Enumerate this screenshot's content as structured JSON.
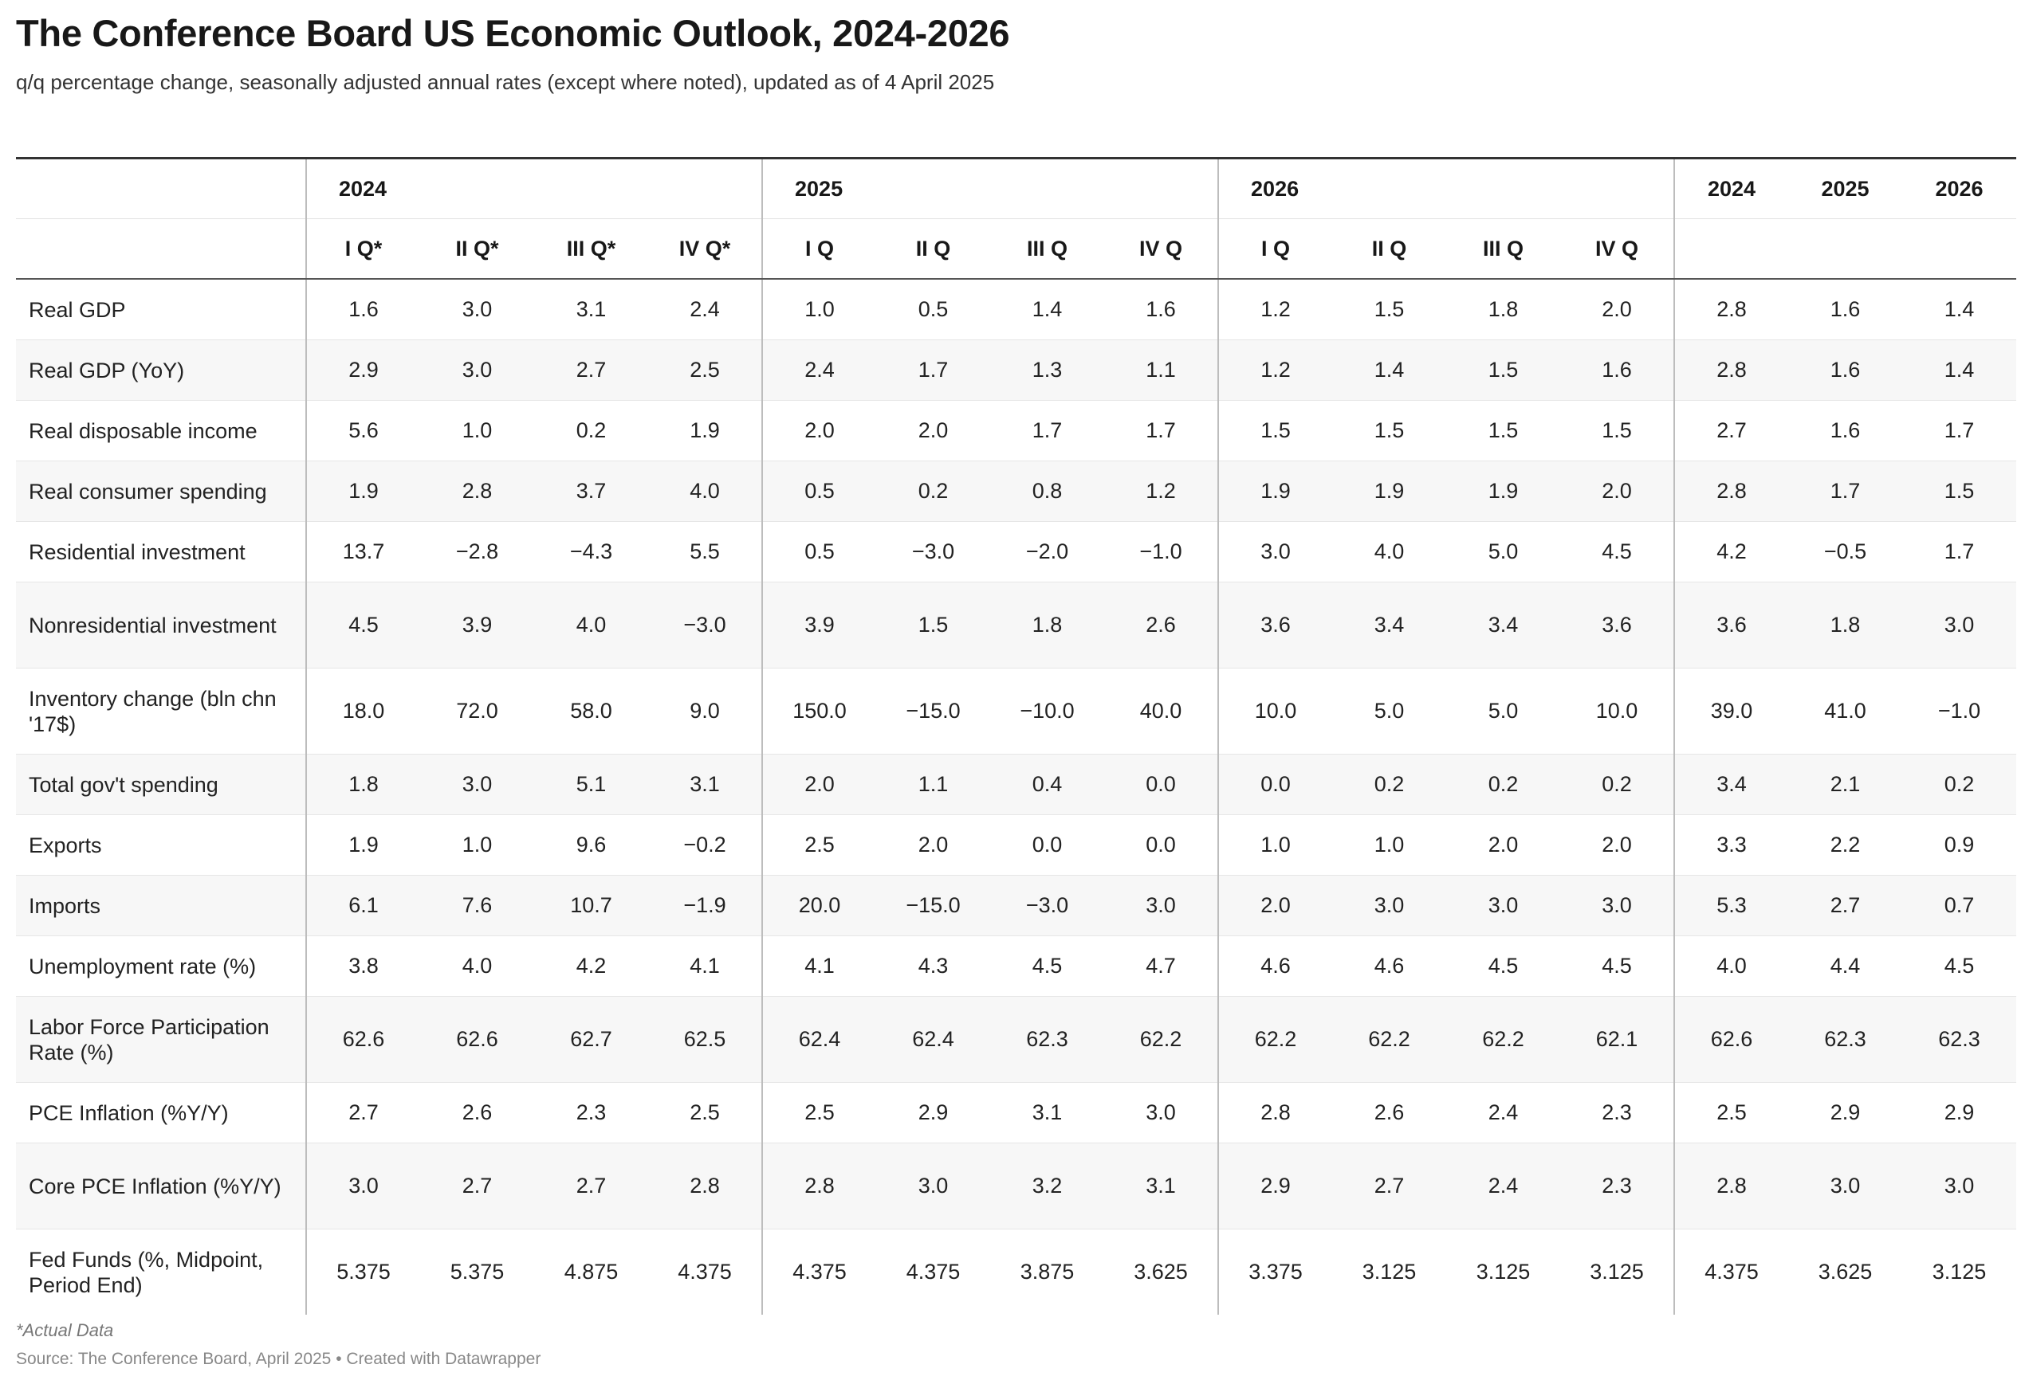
{
  "chart_data": {
    "type": "table",
    "title": "The Conference Board US Economic Outlook, 2024-2026",
    "subtitle": "q/q percentage change, seasonally adjusted annual rates (except where noted), updated as of 4 April 2025",
    "year_groups": [
      "2024",
      "2025",
      "2026"
    ],
    "quarter_labels": [
      "I Q*",
      "II Q*",
      "III Q*",
      "IV Q*",
      "I Q",
      "II Q",
      "III Q",
      "IV Q",
      "I Q",
      "II Q",
      "III Q",
      "IV Q"
    ],
    "annual_labels": [
      "2024",
      "2025",
      "2026"
    ],
    "rows": [
      {
        "label": "Real GDP",
        "values": [
          "1.6",
          "3.0",
          "3.1",
          "2.4",
          "1.0",
          "0.5",
          "1.4",
          "1.6",
          "1.2",
          "1.5",
          "1.8",
          "2.0",
          "2.8",
          "1.6",
          "1.4"
        ]
      },
      {
        "label": "Real GDP (YoY)",
        "values": [
          "2.9",
          "3.0",
          "2.7",
          "2.5",
          "2.4",
          "1.7",
          "1.3",
          "1.1",
          "1.2",
          "1.4",
          "1.5",
          "1.6",
          "2.8",
          "1.6",
          "1.4"
        ]
      },
      {
        "label": "Real disposable income",
        "values": [
          "5.6",
          "1.0",
          "0.2",
          "1.9",
          "2.0",
          "2.0",
          "1.7",
          "1.7",
          "1.5",
          "1.5",
          "1.5",
          "1.5",
          "2.7",
          "1.6",
          "1.7"
        ]
      },
      {
        "label": "Real consumer spending",
        "values": [
          "1.9",
          "2.8",
          "3.7",
          "4.0",
          "0.5",
          "0.2",
          "0.8",
          "1.2",
          "1.9",
          "1.9",
          "1.9",
          "2.0",
          "2.8",
          "1.7",
          "1.5"
        ]
      },
      {
        "label": "Residential investment",
        "values": [
          "13.7",
          "−2.8",
          "−4.3",
          "5.5",
          "0.5",
          "−3.0",
          "−2.0",
          "−1.0",
          "3.0",
          "4.0",
          "5.0",
          "4.5",
          "4.2",
          "−0.5",
          "1.7"
        ]
      },
      {
        "label": "Nonresidential investment",
        "values": [
          "4.5",
          "3.9",
          "4.0",
          "−3.0",
          "3.9",
          "1.5",
          "1.8",
          "2.6",
          "3.6",
          "3.4",
          "3.4",
          "3.6",
          "3.6",
          "1.8",
          "3.0"
        ]
      },
      {
        "label": "Inventory change (bln chn '17$)",
        "values": [
          "18.0",
          "72.0",
          "58.0",
          "9.0",
          "150.0",
          "−15.0",
          "−10.0",
          "40.0",
          "10.0",
          "5.0",
          "5.0",
          "10.0",
          "39.0",
          "41.0",
          "−1.0"
        ]
      },
      {
        "label": "Total gov't spending",
        "values": [
          "1.8",
          "3.0",
          "5.1",
          "3.1",
          "2.0",
          "1.1",
          "0.4",
          "0.0",
          "0.0",
          "0.2",
          "0.2",
          "0.2",
          "3.4",
          "2.1",
          "0.2"
        ]
      },
      {
        "label": "Exports",
        "values": [
          "1.9",
          "1.0",
          "9.6",
          "−0.2",
          "2.5",
          "2.0",
          "0.0",
          "0.0",
          "1.0",
          "1.0",
          "2.0",
          "2.0",
          "3.3",
          "2.2",
          "0.9"
        ]
      },
      {
        "label": "Imports",
        "values": [
          "6.1",
          "7.6",
          "10.7",
          "−1.9",
          "20.0",
          "−15.0",
          "−3.0",
          "3.0",
          "2.0",
          "3.0",
          "3.0",
          "3.0",
          "5.3",
          "2.7",
          "0.7"
        ]
      },
      {
        "label": "Unemployment rate (%)",
        "values": [
          "3.8",
          "4.0",
          "4.2",
          "4.1",
          "4.1",
          "4.3",
          "4.5",
          "4.7",
          "4.6",
          "4.6",
          "4.5",
          "4.5",
          "4.0",
          "4.4",
          "4.5"
        ]
      },
      {
        "label": "Labor Force Participation Rate (%)",
        "values": [
          "62.6",
          "62.6",
          "62.7",
          "62.5",
          "62.4",
          "62.4",
          "62.3",
          "62.2",
          "62.2",
          "62.2",
          "62.2",
          "62.1",
          "62.6",
          "62.3",
          "62.3"
        ]
      },
      {
        "label": "PCE Inflation (%Y/Y)",
        "values": [
          "2.7",
          "2.6",
          "2.3",
          "2.5",
          "2.5",
          "2.9",
          "3.1",
          "3.0",
          "2.8",
          "2.6",
          "2.4",
          "2.3",
          "2.5",
          "2.9",
          "2.9"
        ]
      },
      {
        "label": "Core PCE Inflation (%Y/Y)",
        "values": [
          "3.0",
          "2.7",
          "2.7",
          "2.8",
          "2.8",
          "3.0",
          "3.2",
          "3.1",
          "2.9",
          "2.7",
          "2.4",
          "2.3",
          "2.8",
          "3.0",
          "3.0"
        ]
      },
      {
        "label": "Fed Funds (%, Midpoint, Period End)",
        "values": [
          "5.375",
          "5.375",
          "4.875",
          "4.375",
          "4.375",
          "4.375",
          "3.875",
          "3.625",
          "3.375",
          "3.125",
          "3.125",
          "3.125",
          "4.375",
          "3.625",
          "3.125"
        ]
      }
    ],
    "footnote": "*Actual Data",
    "source": "Source: The Conference Board, April 2025 • Created with Datawrapper"
  }
}
